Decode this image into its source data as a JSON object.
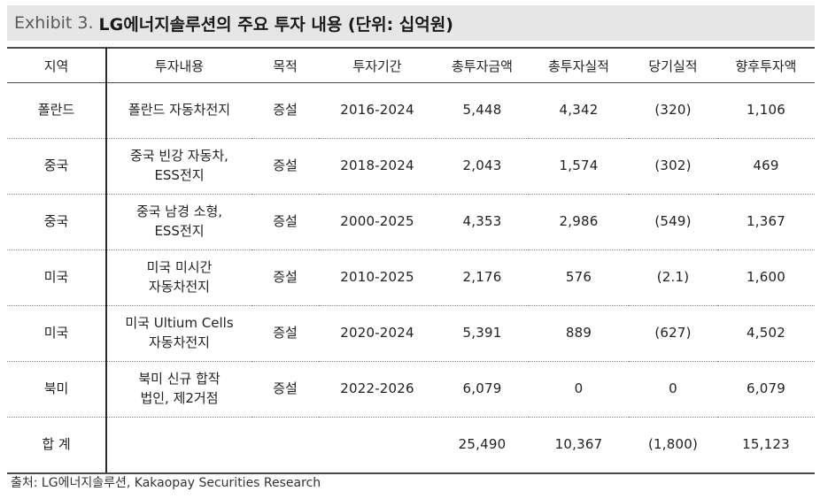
{
  "title": {
    "prefix": "Exhibit 3.",
    "text": "LG에너지솔루션의 주요 투자 내용 (단위: 십억원)"
  },
  "table": {
    "headers": [
      "지역",
      "투자내용",
      "목적",
      "투자기간",
      "총투자금액",
      "총투자실적",
      "당기실적",
      "향후투자액"
    ],
    "rows": [
      {
        "region": "폴란드",
        "content": [
          "폴란드 자동차전지"
        ],
        "purpose": "증설",
        "period": "2016-2024",
        "total_amount": "5,448",
        "total_actual": "4,342",
        "current_actual": "(320)",
        "future": "1,106"
      },
      {
        "region": "중국",
        "content": [
          "중국 빈강 자동차,",
          "ESS전지"
        ],
        "purpose": "증설",
        "period": "2018-2024",
        "total_amount": "2,043",
        "total_actual": "1,574",
        "current_actual": "(302)",
        "future": "469"
      },
      {
        "region": "중국",
        "content": [
          "중국 남경 소형,",
          "ESS전지"
        ],
        "purpose": "증설",
        "period": "2000-2025",
        "total_amount": "4,353",
        "total_actual": "2,986",
        "current_actual": "(549)",
        "future": "1,367"
      },
      {
        "region": "미국",
        "content": [
          "미국 미시간",
          "자동차전지"
        ],
        "purpose": "증설",
        "period": "2010-2025",
        "total_amount": "2,176",
        "total_actual": "576",
        "current_actual": "(2.1)",
        "future": "1,600"
      },
      {
        "region": "미국",
        "content": [
          "미국 Ultium Cells",
          "자동차전지"
        ],
        "purpose": "증설",
        "period": "2020-2024",
        "total_amount": "5,391",
        "total_actual": "889",
        "current_actual": "(627)",
        "future": "4,502"
      },
      {
        "region": "북미",
        "content": [
          "북미 신규 합작",
          "법인, 제2거점"
        ],
        "purpose": "증설",
        "period": "2022-2026",
        "total_amount": "6,079",
        "total_actual": "0",
        "current_actual": "0",
        "future": "6,079"
      }
    ],
    "total": {
      "label": "합 계",
      "total_amount": "25,490",
      "total_actual": "10,367",
      "current_actual": "(1,800)",
      "future": "15,123"
    }
  },
  "source": "출처: LG에너지솔루션, Kakaopay Securities Research"
}
